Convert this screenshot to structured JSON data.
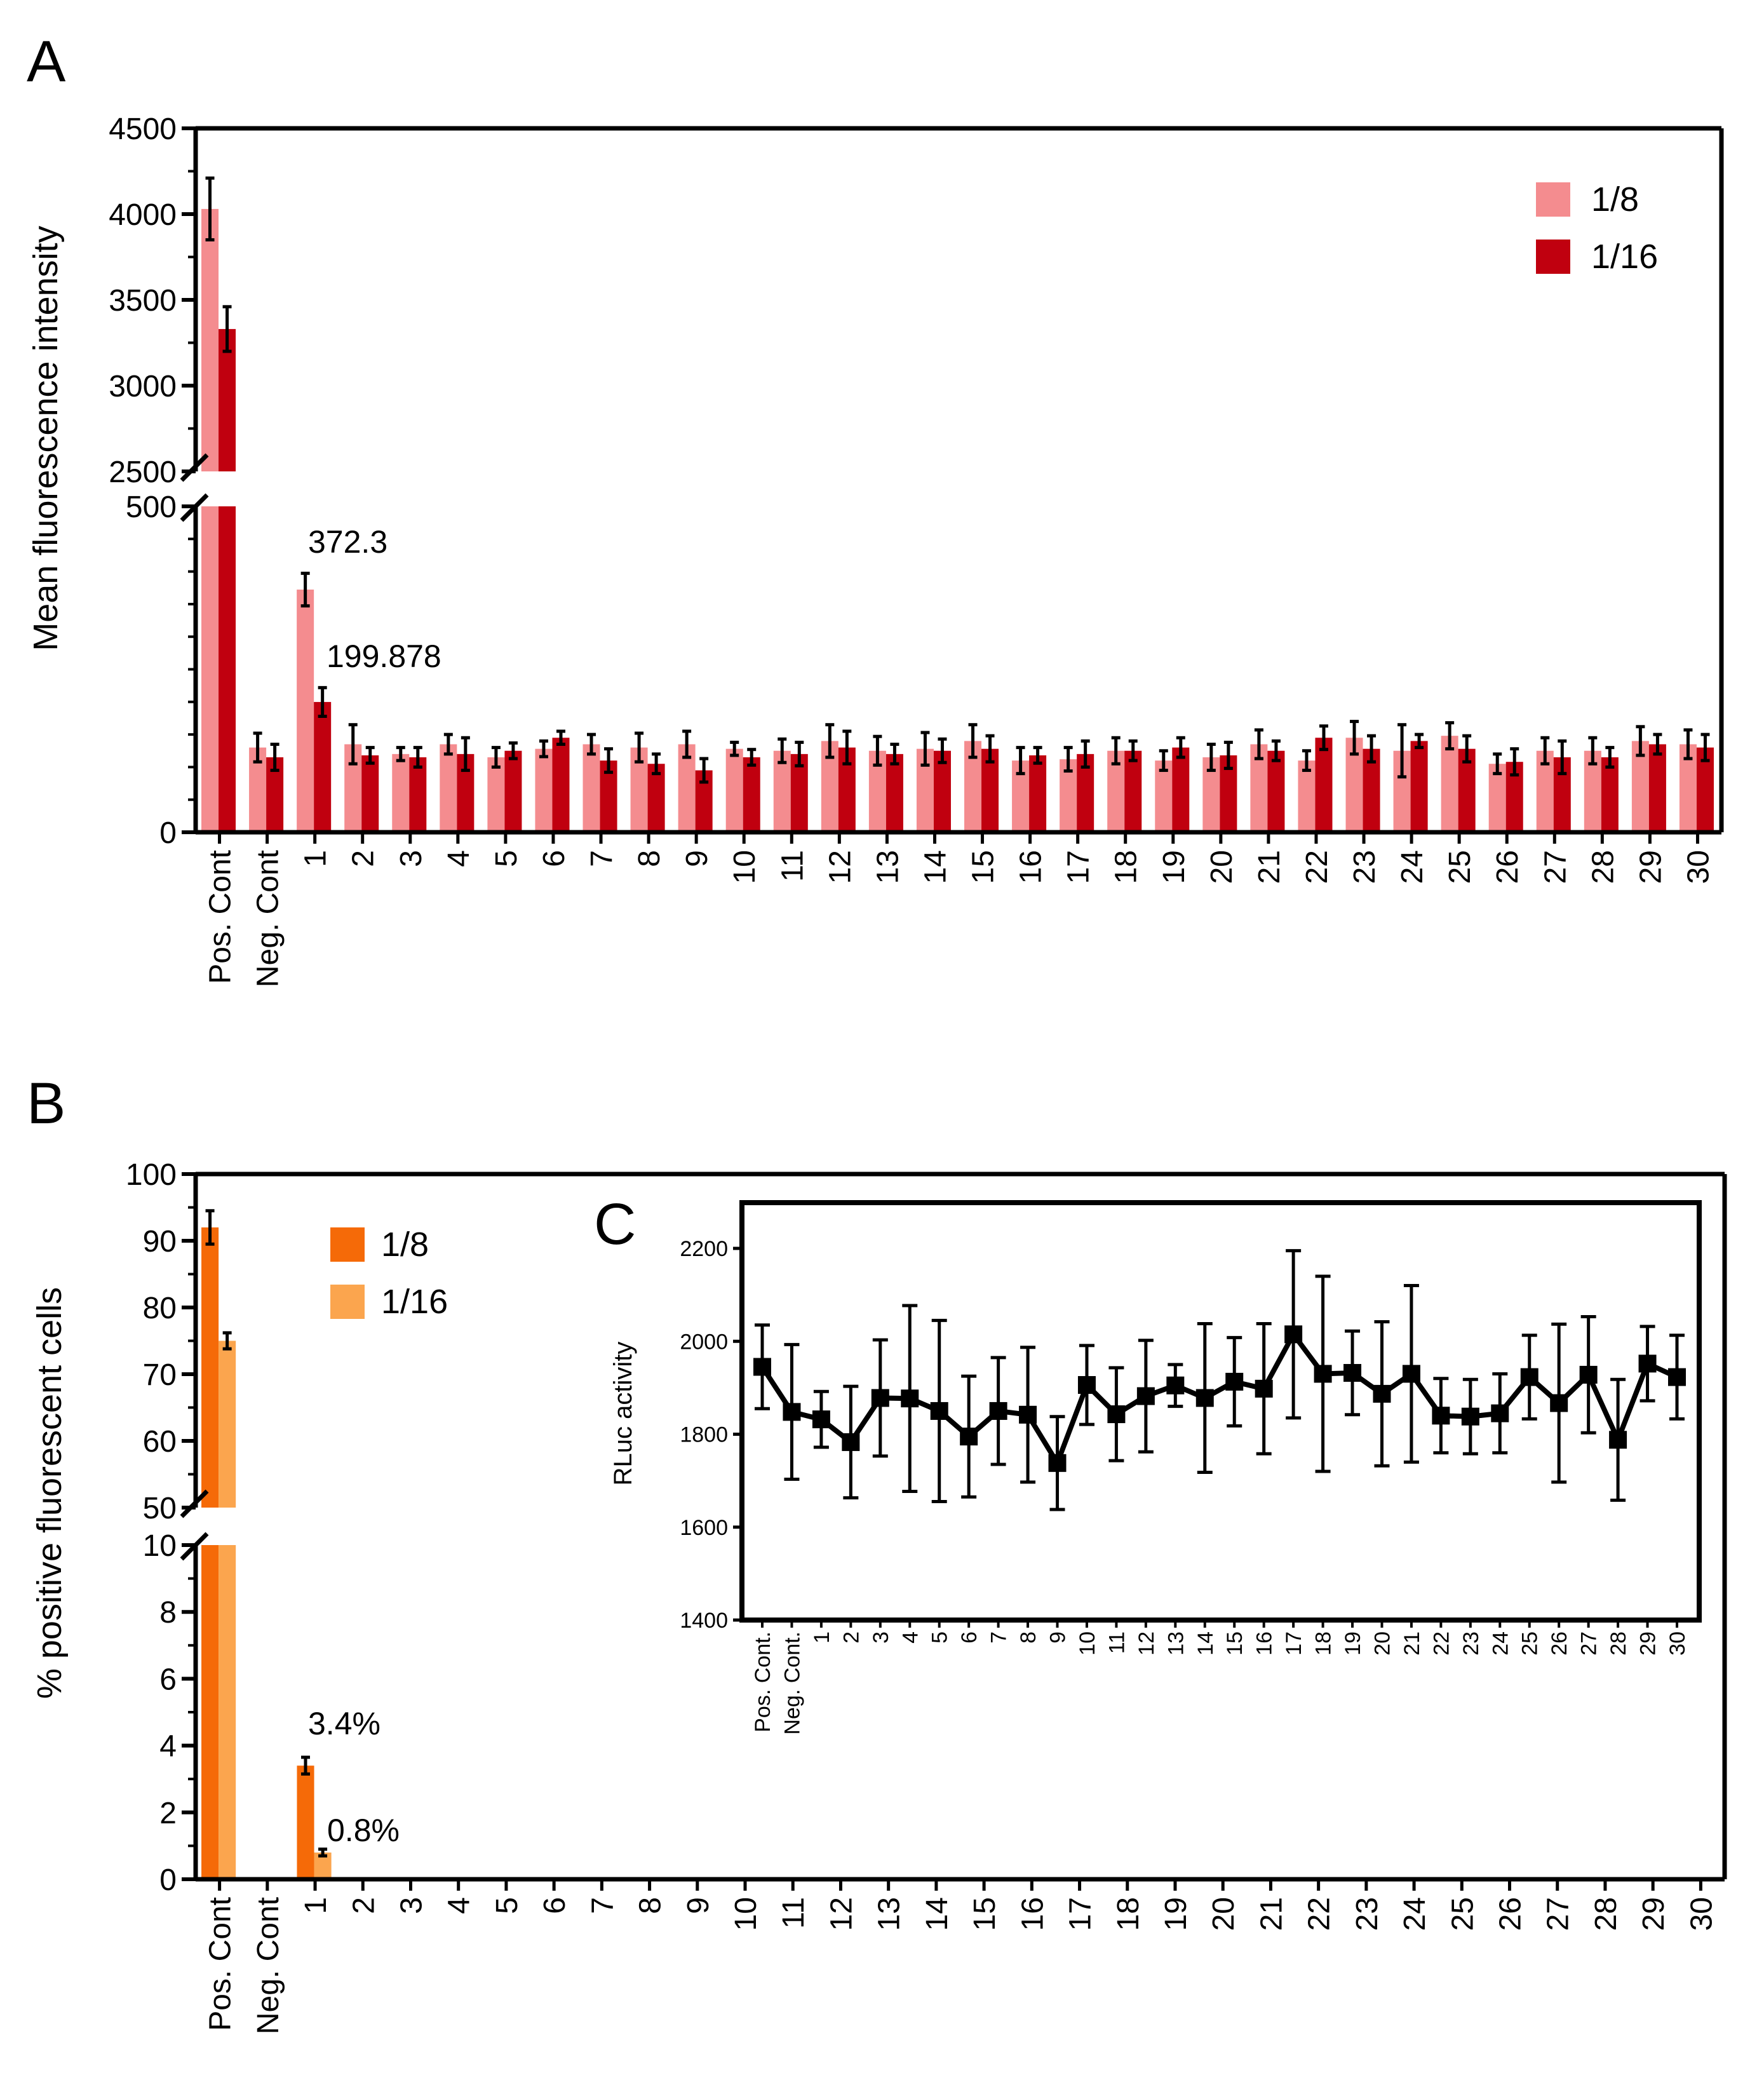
{
  "colors": {
    "a_series1": "#f48c8f",
    "a_series2": "#c0000f",
    "b_series1": "#f56a08",
    "b_series2": "#fba54e",
    "axis": "#000000"
  },
  "chart_data": [
    {
      "panel": "A",
      "type": "bar",
      "ylabel": "Mean fluorescence intensity",
      "categories": [
        "Pos. Cont",
        "Neg. Cont",
        "1",
        "2",
        "3",
        "4",
        "5",
        "6",
        "7",
        "8",
        "9",
        "10",
        "11",
        "12",
        "13",
        "14",
        "15",
        "16",
        "17",
        "18",
        "19",
        "20",
        "21",
        "22",
        "23",
        "24",
        "25",
        "26",
        "27",
        "28",
        "29",
        "30"
      ],
      "y_axis": {
        "broken": true,
        "lower_range": [
          0,
          500
        ],
        "upper_range": [
          2500,
          4500
        ],
        "lower_ticks": [
          "0",
          "500"
        ],
        "upper_ticks": [
          "2500",
          "3000",
          "3500",
          "4000",
          "4500"
        ]
      },
      "series": [
        {
          "name": "1/8",
          "values": [
            4030,
            130,
            372.3,
            135,
            120,
            135,
            115,
            128,
            135,
            130,
            135,
            128,
            125,
            140,
            125,
            128,
            140,
            110,
            112,
            125,
            110,
            115,
            135,
            110,
            145,
            125,
            148,
            105,
            125,
            125,
            140,
            135
          ],
          "errors": [
            180,
            22,
            25,
            30,
            10,
            15,
            15,
            12,
            15,
            22,
            20,
            10,
            18,
            25,
            22,
            25,
            25,
            20,
            18,
            20,
            15,
            20,
            22,
            15,
            25,
            40,
            20,
            15,
            20,
            20,
            22,
            22
          ]
        },
        {
          "name": "1/16",
          "values": [
            3330,
            115,
            199.878,
            118,
            115,
            120,
            125,
            145,
            110,
            105,
            95,
            115,
            120,
            130,
            120,
            125,
            128,
            118,
            120,
            125,
            130,
            118,
            125,
            145,
            128,
            140,
            128,
            108,
            115,
            115,
            135,
            130
          ],
          "errors": [
            130,
            20,
            22,
            12,
            15,
            25,
            12,
            10,
            18,
            15,
            18,
            12,
            18,
            25,
            15,
            18,
            20,
            12,
            20,
            15,
            15,
            20,
            15,
            18,
            20,
            10,
            20,
            20,
            25,
            15,
            15,
            20
          ]
        }
      ],
      "annotations": [
        "372.3",
        "199.878"
      ],
      "legend": "top-right"
    },
    {
      "panel": "B",
      "type": "bar",
      "ylabel": "% positive fluorescent cells",
      "categories": [
        "Pos. Cont",
        "Neg. Cont",
        "1",
        "2",
        "3",
        "4",
        "5",
        "6",
        "7",
        "8",
        "9",
        "10",
        "11",
        "12",
        "13",
        "14",
        "15",
        "16",
        "17",
        "18",
        "19",
        "20",
        "21",
        "22",
        "23",
        "24",
        "25",
        "26",
        "27",
        "28",
        "29",
        "30"
      ],
      "y_axis": {
        "broken": true,
        "lower_range": [
          0,
          10
        ],
        "upper_range": [
          50,
          100
        ],
        "lower_ticks": [
          "0",
          "2",
          "4",
          "6",
          "8",
          "10"
        ],
        "upper_ticks": [
          "50",
          "60",
          "70",
          "80",
          "90",
          "100"
        ]
      },
      "series": [
        {
          "name": "1/8",
          "values": [
            92,
            0,
            3.4,
            0,
            0,
            0,
            0,
            0,
            0,
            0,
            0,
            0,
            0,
            0,
            0,
            0,
            0,
            0,
            0,
            0,
            0,
            0,
            0,
            0,
            0,
            0,
            0,
            0,
            0,
            0,
            0,
            0
          ],
          "errors": [
            2.5,
            0,
            0.25,
            0,
            0,
            0,
            0,
            0,
            0,
            0,
            0,
            0,
            0,
            0,
            0,
            0,
            0,
            0,
            0,
            0,
            0,
            0,
            0,
            0,
            0,
            0,
            0,
            0,
            0,
            0,
            0,
            0
          ]
        },
        {
          "name": "1/16",
          "values": [
            75,
            0,
            0.8,
            0,
            0,
            0,
            0,
            0,
            0,
            0,
            0,
            0,
            0,
            0,
            0,
            0,
            0,
            0,
            0,
            0,
            0,
            0,
            0,
            0,
            0,
            0,
            0,
            0,
            0,
            0,
            0,
            0
          ],
          "errors": [
            1.2,
            0,
            0.1,
            0,
            0,
            0,
            0,
            0,
            0,
            0,
            0,
            0,
            0,
            0,
            0,
            0,
            0,
            0,
            0,
            0,
            0,
            0,
            0,
            0,
            0,
            0,
            0,
            0,
            0,
            0,
            0,
            0
          ]
        }
      ],
      "annotations": [
        "3.4%",
        "0.8%"
      ],
      "legend": "top-left"
    },
    {
      "panel": "C",
      "type": "line",
      "ylabel": "RLuc activity",
      "categories": [
        "Pos. Cont.",
        "Neg. Cont.",
        "1",
        "2",
        "3",
        "4",
        "5",
        "6",
        "7",
        "8",
        "9",
        "10",
        "11",
        "12",
        "13",
        "14",
        "15",
        "16",
        "17",
        "18",
        "19",
        "20",
        "21",
        "22",
        "23",
        "24",
        "25",
        "26",
        "27",
        "28",
        "29",
        "30"
      ],
      "ylim": [
        1400,
        2200
      ],
      "y_ticks": [
        "1400",
        "1600",
        "1800",
        "2000",
        "2200"
      ],
      "values": [
        1945,
        1848,
        1832,
        1783,
        1878,
        1877,
        1850,
        1795,
        1850,
        1842,
        1738,
        1906,
        1843,
        1882,
        1905,
        1878,
        1913,
        1898,
        2015,
        1930,
        1932,
        1887,
        1930,
        1840,
        1838,
        1845,
        1923,
        1867,
        1928,
        1788,
        1952,
        1923
      ],
      "errors": [
        90,
        145,
        60,
        120,
        125,
        200,
        195,
        130,
        115,
        145,
        100,
        85,
        100,
        120,
        45,
        160,
        95,
        140,
        180,
        210,
        90,
        155,
        190,
        80,
        80,
        85,
        90,
        170,
        125,
        130,
        80,
        90
      ]
    }
  ]
}
